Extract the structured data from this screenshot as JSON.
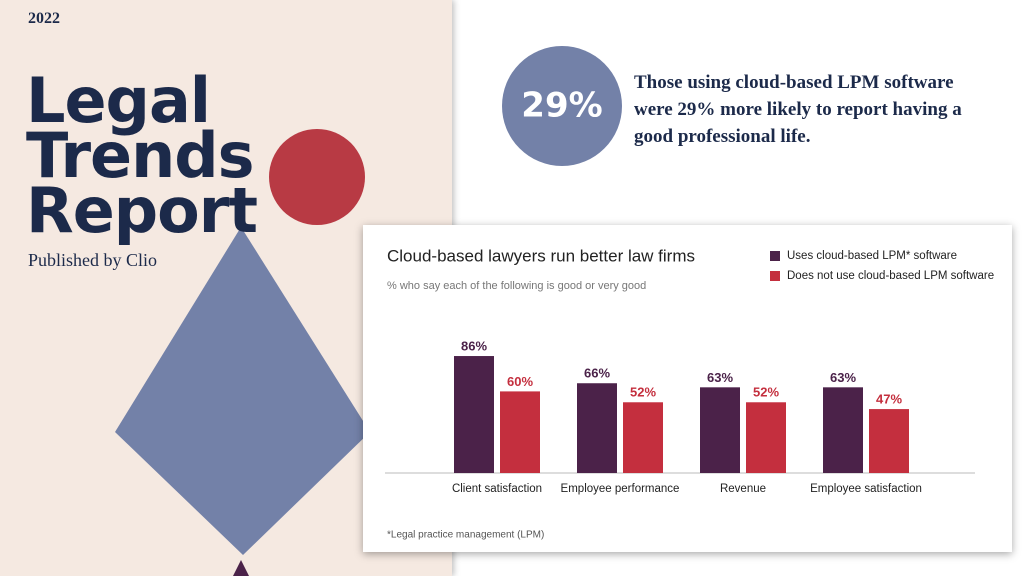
{
  "cover": {
    "year": "2022",
    "title_lines": [
      "Legal",
      "Trends",
      "Report"
    ],
    "publisher": "Published by Clio"
  },
  "callout": {
    "stat": "29%",
    "text": "Those using cloud-based LPM software were 29% more likely to report having a good professional life."
  },
  "chart_data": {
    "type": "bar",
    "title": "Cloud-based lawyers run better law firms",
    "subtitle": "% who say each of the following is good or very good",
    "categories": [
      "Client satisfaction",
      "Employee performance",
      "Revenue",
      "Employee satisfaction"
    ],
    "series": [
      {
        "name": "Uses cloud-based LPM* software",
        "color": "#4b2249",
        "values": [
          86,
          66,
          63,
          63
        ],
        "value_labels": [
          "86%",
          "66%",
          "63%",
          "63%"
        ]
      },
      {
        "name": "Does not use cloud-based LPM software",
        "color": "#c42f3e",
        "values": [
          60,
          52,
          52,
          47
        ],
        "value_labels": [
          "60%",
          "52%",
          "52%",
          "47%"
        ]
      }
    ],
    "footnote": "*Legal practice management (LPM)"
  }
}
